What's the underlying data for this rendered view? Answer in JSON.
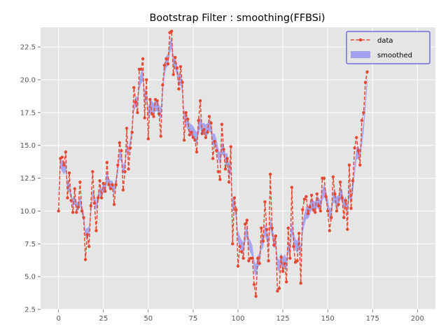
{
  "chart_data": {
    "type": "line",
    "title": "Bootstrap Filter : smoothing(FFBSi)",
    "xlabel": "",
    "ylabel": "",
    "xlim": [
      -10,
      210
    ],
    "ylim": [
      2.5,
      24.0
    ],
    "xticks": [
      0,
      25,
      50,
      75,
      100,
      125,
      150,
      175,
      200
    ],
    "yticks": [
      2.5,
      5.0,
      7.5,
      10.0,
      12.5,
      15.0,
      17.5,
      20.0,
      22.5
    ],
    "ytick_labels": [
      "2.5",
      "5.0",
      "7.5",
      "10.0",
      "12.5",
      "15.0",
      "17.5",
      "20.0",
      "22.5"
    ],
    "grid": true,
    "legend_position": "top-right",
    "colors": {
      "background": "#E5E5E5",
      "grid": "#FFFFFF",
      "data": "#E24A33",
      "smoothed": "#A1A1F0",
      "legend_border": "#3333CC"
    },
    "series": [
      {
        "name": "data",
        "style": "dashed-line-with-markers",
        "values": [
          10.0,
          14.0,
          14.1,
          13.5,
          14.5,
          11.0,
          12.9,
          10.8,
          9.9,
          11.7,
          9.9,
          10.3,
          12.2,
          10.0,
          9.5,
          6.3,
          8.2,
          7.3,
          10.4,
          13.0,
          10.6,
          8.5,
          11.0,
          12.3,
          11.0,
          12.1,
          11.5,
          13.7,
          12.0,
          11.7,
          12.0,
          10.5,
          12.0,
          13.5,
          15.2,
          14.6,
          11.6,
          13.0,
          16.3,
          13.2,
          14.8,
          16.0,
          19.4,
          18.3,
          17.5,
          20.8,
          20.8,
          21.6,
          17.1,
          20.0,
          15.5,
          18.5,
          17.4,
          17.2,
          18.5,
          18.4,
          17.4,
          15.7,
          19.6,
          21.1,
          21.6,
          21.2,
          23.6,
          23.7,
          20.4,
          21.7,
          20.9,
          19.3,
          21.0,
          19.8,
          15.4,
          17.5,
          17.0,
          15.8,
          16.0,
          15.6,
          15.4,
          14.5,
          16.9,
          18.4,
          15.9,
          16.2,
          15.6,
          16.0,
          17.2,
          16.7,
          14.0,
          15.3,
          14.6,
          13.0,
          12.4,
          16.6,
          14.7,
          13.2,
          14.0,
          12.2,
          14.9,
          7.5,
          11.0,
          10.1,
          5.8,
          7.3,
          6.9,
          6.4,
          9.0,
          9.3,
          6.2,
          6.4,
          6.4,
          4.4,
          3.5,
          6.4,
          6.0,
          8.7,
          7.7,
          10.7,
          8.6,
          6.2,
          12.8,
          8.7,
          7.4,
          8.1,
          3.9,
          4.1,
          6.5,
          5.4,
          6.0,
          4.6,
          8.7,
          6.4,
          11.8,
          7.3,
          6.1,
          6.2,
          8.3,
          4.5,
          10.1,
          10.9,
          11.1,
          9.8,
          10.3,
          11.2,
          10.1,
          9.9,
          11.3,
          10.4,
          10.0,
          12.5,
          12.5,
          11.1,
          10.0,
          8.5,
          9.5,
          12.6,
          11.3,
          10.0,
          10.5,
          12.2,
          11.0,
          9.5,
          10.8,
          8.6,
          13.5,
          10.2,
          12.3,
          14.8,
          15.6,
          14.6,
          13.5,
          16.9,
          17.5,
          19.8,
          20.6
        ],
        "values_note_smoothed_omitted": ""
      },
      {
        "name": "smoothed",
        "style": "band",
        "lower": [
          11.0,
          13.3,
          13.0,
          12.8,
          13.0,
          11.6,
          11.4,
          10.9,
          10.3,
          10.5,
          10.1,
          10.0,
          10.4,
          9.8,
          9.2,
          7.9,
          8.0,
          8.1,
          9.6,
          10.9,
          10.6,
          10.0,
          10.6,
          11.1,
          11.0,
          11.4,
          11.4,
          12.2,
          11.8,
          11.6,
          11.6,
          11.2,
          11.9,
          12.8,
          13.9,
          13.8,
          12.8,
          13.1,
          14.5,
          14.1,
          14.9,
          15.8,
          17.6,
          17.9,
          17.9,
          19.2,
          19.7,
          19.9,
          18.3,
          18.4,
          17.0,
          17.5,
          17.5,
          17.3,
          17.6,
          17.6,
          17.2,
          17.0,
          18.7,
          20.2,
          20.9,
          21.1,
          22.0,
          22.4,
          21.0,
          20.8,
          20.3,
          19.5,
          19.6,
          19.0,
          16.8,
          16.5,
          16.2,
          15.8,
          15.7,
          15.6,
          15.3,
          15.1,
          15.8,
          16.3,
          15.8,
          15.8,
          15.7,
          15.8,
          16.1,
          15.9,
          15.0,
          15.0,
          14.6,
          13.9,
          13.5,
          14.3,
          14.2,
          13.5,
          13.5,
          12.7,
          12.8,
          10.0,
          10.0,
          9.3,
          7.6,
          7.2,
          6.9,
          6.7,
          7.6,
          8.0,
          7.1,
          6.8,
          6.5,
          5.4,
          5.0,
          5.7,
          5.9,
          7.0,
          7.2,
          8.1,
          7.8,
          7.1,
          8.6,
          8.0,
          7.2,
          7.2,
          5.6,
          5.3,
          5.9,
          5.6,
          5.8,
          5.5,
          6.9,
          6.4,
          8.3,
          7.5,
          7.0,
          6.8,
          7.3,
          6.4,
          8.2,
          8.9,
          9.4,
          9.4,
          9.7,
          10.1,
          9.9,
          9.8,
          10.3,
          10.1,
          9.9,
          10.8,
          11.1,
          10.7,
          10.1,
          9.3,
          9.4,
          10.6,
          10.6,
          10.2,
          10.3,
          10.9,
          10.7,
          10.0,
          10.2,
          9.6,
          11.0,
          10.6,
          11.3,
          12.7,
          13.9,
          14.0,
          13.8,
          15.0,
          16.0,
          17.7,
          19.5
        ],
        "upper": [
          11.6,
          14.0,
          13.8,
          13.6,
          13.8,
          12.3,
          12.1,
          11.5,
          10.9,
          11.2,
          10.7,
          10.7,
          11.1,
          10.5,
          9.9,
          8.6,
          8.7,
          8.8,
          10.3,
          11.6,
          11.3,
          10.7,
          11.3,
          11.8,
          11.7,
          12.1,
          12.1,
          12.9,
          12.5,
          12.3,
          12.3,
          11.9,
          12.6,
          13.5,
          14.6,
          14.5,
          13.5,
          13.8,
          15.2,
          14.8,
          15.6,
          16.5,
          18.4,
          18.7,
          18.7,
          20.1,
          20.6,
          20.8,
          19.2,
          19.3,
          17.9,
          18.4,
          18.4,
          18.2,
          18.5,
          18.5,
          18.1,
          17.9,
          19.6,
          21.1,
          21.8,
          22.0,
          22.9,
          23.3,
          21.9,
          21.7,
          21.2,
          20.4,
          20.5,
          19.9,
          17.7,
          17.4,
          17.1,
          16.7,
          16.6,
          16.5,
          16.2,
          16.0,
          16.7,
          17.2,
          16.7,
          16.7,
          16.6,
          16.7,
          17.0,
          16.8,
          15.9,
          15.9,
          15.5,
          14.8,
          14.4,
          15.2,
          15.1,
          14.4,
          14.4,
          13.6,
          13.7,
          10.9,
          10.9,
          10.2,
          8.5,
          8.1,
          7.8,
          7.6,
          8.5,
          8.9,
          8.0,
          7.7,
          7.4,
          6.3,
          5.9,
          6.6,
          6.8,
          7.9,
          8.1,
          9.0,
          8.7,
          8.0,
          9.5,
          8.9,
          8.1,
          8.1,
          6.5,
          6.2,
          6.8,
          6.5,
          6.7,
          6.4,
          7.8,
          7.3,
          9.2,
          8.4,
          7.9,
          7.7,
          8.2,
          7.3,
          9.1,
          9.8,
          10.3,
          10.3,
          10.6,
          11.0,
          10.8,
          10.7,
          11.2,
          11.0,
          10.8,
          11.7,
          12.0,
          11.6,
          11.0,
          10.2,
          10.3,
          11.5,
          11.5,
          11.1,
          11.2,
          11.8,
          11.6,
          10.9,
          11.1,
          10.5,
          11.9,
          11.5,
          12.2,
          13.6,
          14.8,
          14.9,
          14.7,
          15.9,
          16.9,
          18.6,
          20.4
        ]
      }
    ]
  }
}
